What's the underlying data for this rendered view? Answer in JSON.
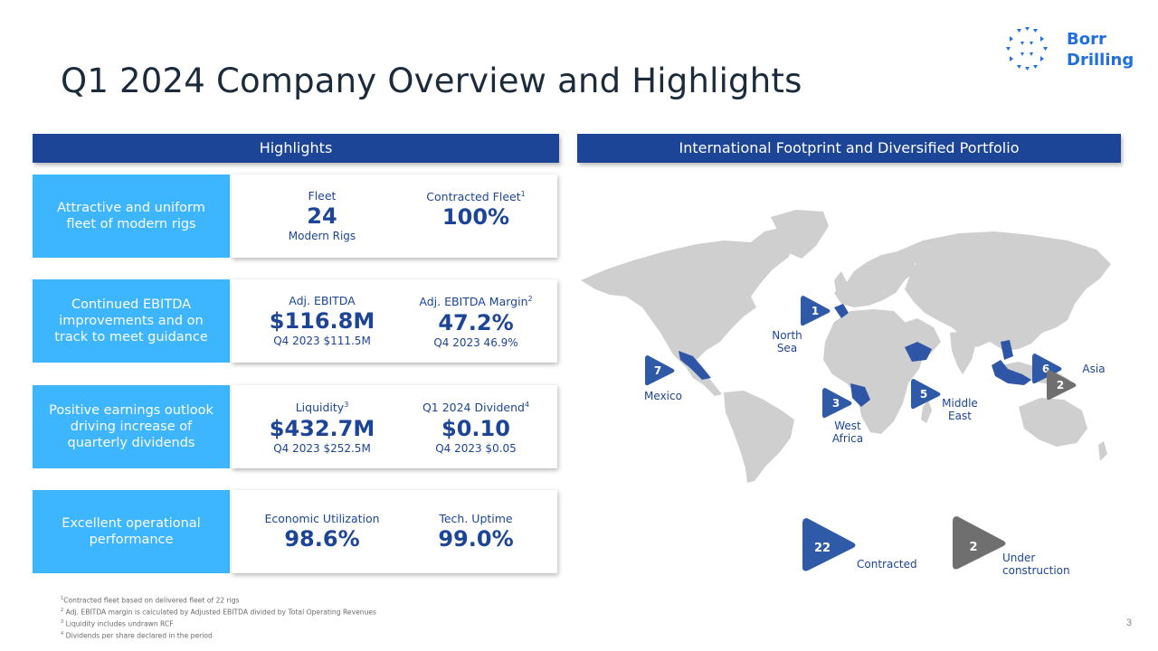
{
  "page": {
    "title": "Q1 2024 Company Overview and Highlights",
    "page_number": "3"
  },
  "logo": {
    "line1": "Borr",
    "line2": "Drilling",
    "color": "#1f6fe0"
  },
  "highlights": {
    "header": "Highlights",
    "rows": [
      {
        "label": "Attractive and uniform fleet of modern rigs",
        "metrics": [
          {
            "label": "Fleet",
            "sup": "",
            "value": "24",
            "sub": "Modern Rigs"
          },
          {
            "label": "Contracted Fleet",
            "sup": "1",
            "value": "100%",
            "sub": ""
          }
        ]
      },
      {
        "label": "Continued EBITDA improvements and on track to meet guidance",
        "metrics": [
          {
            "label": "Adj. EBITDA",
            "sup": "",
            "value": "$116.8M",
            "sub": "Q4 2023  $111.5M"
          },
          {
            "label": "Adj. EBITDA Margin",
            "sup": "2",
            "value": "47.2%",
            "sub": "Q4 2023   46.9%"
          }
        ]
      },
      {
        "label": "Positive earnings outlook driving increase of quarterly dividends",
        "metrics": [
          {
            "label": "Liquidity",
            "sup": "3",
            "value": "$432.7M",
            "sub": "Q4 2023  $252.5M"
          },
          {
            "label": "Q1 2024  Dividend",
            "sup": "4",
            "value": "$0.10",
            "sub": "Q4 2023  $0.05"
          }
        ]
      },
      {
        "label": "Excellent operational performance",
        "metrics": [
          {
            "label": "Economic  Utilization",
            "sup": "",
            "value": "98.6%",
            "sub": ""
          },
          {
            "label": "Tech. Uptime",
            "sup": "",
            "value": "99.0%",
            "sub": ""
          }
        ]
      }
    ]
  },
  "footprint": {
    "header": "International Footprint and Diversified Portfolio",
    "regions": [
      {
        "count": "1",
        "name_line1": "North",
        "name_line2": "Sea"
      },
      {
        "count": "7",
        "name_line1": "Mexico",
        "name_line2": ""
      },
      {
        "count": "3",
        "name_line1": "West",
        "name_line2": "Africa"
      },
      {
        "count": "5",
        "name_line1": "Middle",
        "name_line2": "East"
      },
      {
        "count": "6",
        "name_line1": "Asia",
        "name_line2": "",
        "under_construction": "2"
      }
    ],
    "legend": {
      "contracted_count": "22",
      "contracted_label": "Contracted",
      "under_construction_count": "2",
      "under_construction_line1": "Under",
      "under_construction_line2": "construction"
    },
    "colors": {
      "contracted": "#2e5aa8",
      "under_construction": "#6f6f6f",
      "land": "#cfcfcf",
      "highlight_country": "#2f56a6"
    }
  },
  "footnotes": [
    {
      "sup": "1",
      "text": "Contracted  fleet based on delivered fleet of 22 rigs"
    },
    {
      "sup": "2",
      "text": "Adj. EBITDA margin is calculated  by Adjusted EBITDA divided by Total Operating  Revenues"
    },
    {
      "sup": "3",
      "text": "Liquidity  includes  undrawn RCF"
    },
    {
      "sup": "4",
      "text": "Dividends  per share declared in the period"
    }
  ],
  "colors": {
    "band": "#1c4598",
    "label_box": "#3db5ff",
    "title": "#1b2b3b"
  }
}
